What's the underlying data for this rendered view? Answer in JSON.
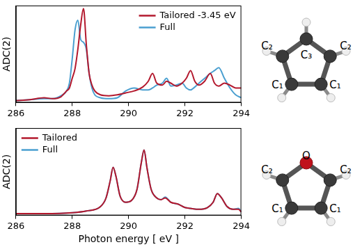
{
  "chart_data": [
    {
      "type": "line",
      "ylabel": "ADC(2)",
      "x": [
        286,
        286.5,
        287,
        287.3,
        287.6,
        287.8,
        287.9,
        288.0,
        288.1,
        288.2,
        288.3,
        288.4,
        288.5,
        288.6,
        288.7,
        288.8,
        289.0,
        289.3,
        289.6,
        289.9,
        290.2,
        290.5,
        290.7,
        290.85,
        291.0,
        291.2,
        291.35,
        291.5,
        291.7,
        291.9,
        292.05,
        292.2,
        292.35,
        292.5,
        292.7,
        292.9,
        293.05,
        293.2,
        293.4,
        293.6,
        293.8,
        294
      ],
      "series": [
        {
          "name": "Tailored -3.45 eV",
          "color": "#b3182d",
          "values": [
            0.02,
            0.03,
            0.05,
            0.04,
            0.06,
            0.12,
            0.15,
            0.25,
            0.35,
            0.55,
            0.8,
            0.97,
            0.6,
            0.3,
            0.18,
            0.12,
            0.08,
            0.07,
            0.08,
            0.1,
            0.12,
            0.16,
            0.22,
            0.3,
            0.2,
            0.18,
            0.22,
            0.2,
            0.17,
            0.2,
            0.25,
            0.33,
            0.22,
            0.18,
            0.22,
            0.3,
            0.2,
            0.17,
            0.2,
            0.18,
            0.15,
            0.15
          ]
        },
        {
          "name": "Full",
          "color": "#4a9fd0",
          "values": [
            0.02,
            0.03,
            0.04,
            0.04,
            0.07,
            0.12,
            0.2,
            0.45,
            0.75,
            0.85,
            0.65,
            0.62,
            0.55,
            0.3,
            0.15,
            0.08,
            0.05,
            0.04,
            0.05,
            0.12,
            0.15,
            0.13,
            0.13,
            0.15,
            0.18,
            0.2,
            0.25,
            0.17,
            0.18,
            0.2,
            0.15,
            0.13,
            0.16,
            0.2,
            0.25,
            0.3,
            0.33,
            0.36,
            0.25,
            0.15,
            0.08,
            0.05
          ]
        }
      ],
      "xlim": [
        286,
        294
      ],
      "xticks": [
        286,
        288,
        290,
        292,
        294
      ],
      "ylim": [
        0,
        1
      ],
      "grid": false,
      "legend": "upper right",
      "tick_labels": "x"
    },
    {
      "type": "line",
      "ylabel": "ADC(2)",
      "xlabel": "Photon energy [ eV ]",
      "x": [
        286,
        287,
        288,
        288.5,
        289.0,
        289.2,
        289.35,
        289.45,
        289.55,
        289.7,
        289.9,
        290.1,
        290.3,
        290.45,
        290.55,
        290.65,
        290.8,
        291.0,
        291.15,
        291.3,
        291.5,
        291.75,
        292.0,
        292.2,
        292.5,
        292.8,
        293.0,
        293.15,
        293.3,
        293.5,
        293.7,
        293.9,
        294
      ],
      "series": [
        {
          "name": "Tailored",
          "color": "#b3182d",
          "values": [
            0.02,
            0.02,
            0.03,
            0.05,
            0.1,
            0.2,
            0.4,
            0.55,
            0.45,
            0.22,
            0.15,
            0.17,
            0.3,
            0.6,
            0.75,
            0.55,
            0.3,
            0.2,
            0.18,
            0.2,
            0.15,
            0.13,
            0.09,
            0.08,
            0.07,
            0.09,
            0.15,
            0.25,
            0.2,
            0.1,
            0.07,
            0.07,
            0.04
          ]
        },
        {
          "name": "Full",
          "color": "#4a9fd0",
          "values": [
            0.02,
            0.02,
            0.03,
            0.05,
            0.1,
            0.2,
            0.4,
            0.55,
            0.45,
            0.22,
            0.15,
            0.17,
            0.3,
            0.6,
            0.75,
            0.55,
            0.3,
            0.2,
            0.18,
            0.21,
            0.15,
            0.13,
            0.09,
            0.08,
            0.07,
            0.09,
            0.15,
            0.25,
            0.2,
            0.1,
            0.07,
            0.08,
            0.04
          ]
        }
      ],
      "xlim": [
        286,
        294
      ],
      "xticks": [
        286,
        288,
        290,
        292,
        294
      ],
      "ylim": [
        0,
        1
      ],
      "grid": false,
      "legend": "upper left",
      "tick_labels": "x"
    }
  ],
  "molecules": [
    {
      "atoms": [
        "C₃",
        "C₂",
        "C₂",
        "C₁",
        "C₁"
      ]
    },
    {
      "atoms": [
        "O",
        "C₂",
        "C₂",
        "C₁",
        "C₁"
      ]
    }
  ]
}
